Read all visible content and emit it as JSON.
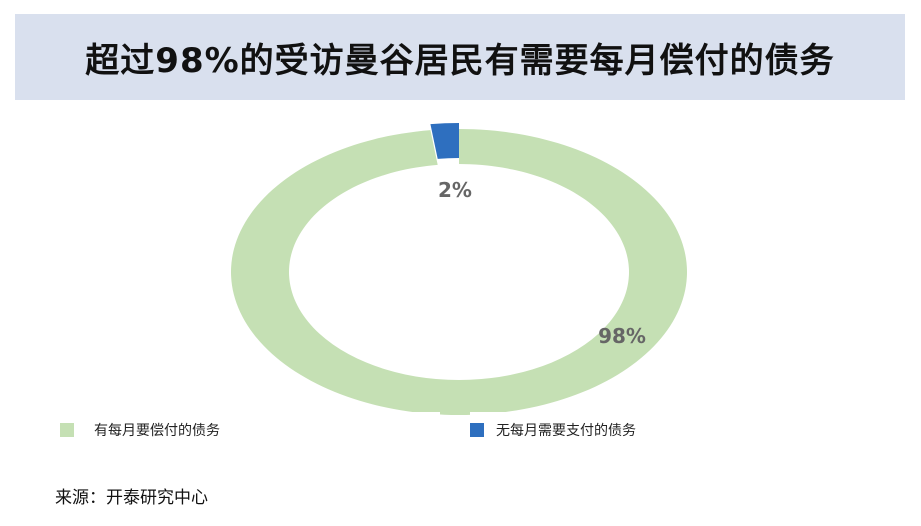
{
  "title": "超过98%的受访曼谷居民有需要每月偿付的债务",
  "source": "来源：开泰研究中心",
  "chart_data": {
    "type": "pie",
    "donut": true,
    "title": "超过98%的受访曼谷居民有需要每月偿付的债务",
    "legend_position": "bottom",
    "slices": [
      {
        "name": "有每月要偿付的债务",
        "value": 98,
        "label": "98%",
        "color": "#c5e0b4"
      },
      {
        "name": "无每月需要支付的债务",
        "value": 2,
        "label": "2%",
        "color": "#2e6fbf"
      }
    ]
  }
}
